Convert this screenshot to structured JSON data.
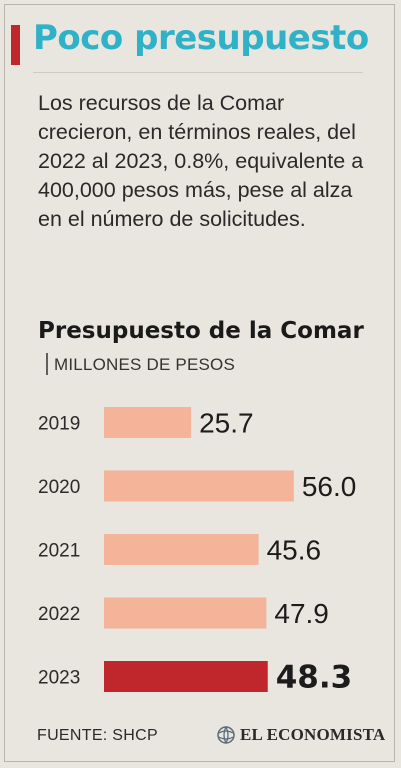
{
  "header": {
    "title": "Poco presupuesto",
    "lead": "Los recursos de la Comar crecieron, en términos reales, del 2022 al 2023, 0.8%, equivalente a 400,000 pesos más, pese al alza en el número de solicitudes."
  },
  "colors": {
    "accent": "#c0272d",
    "title": "#2fb2c7",
    "bar": "#f3b49a",
    "bar_highlight": "#c0272d"
  },
  "chart_data": {
    "type": "bar",
    "orientation": "horizontal",
    "title": "Presupuesto de la Comar",
    "subtitle": "MILLONES DE PESOS",
    "categories": [
      "2019",
      "2020",
      "2021",
      "2022",
      "2023"
    ],
    "values": [
      25.7,
      56.0,
      45.6,
      47.9,
      48.3
    ],
    "value_labels": [
      "25.7",
      "56.0",
      "45.6",
      "47.9",
      "48.3"
    ],
    "highlight": "2023",
    "grid": false,
    "legend": "none"
  },
  "footer": {
    "source": "FUENTE: SHCP",
    "brand": "EL ECONOMISTA",
    "brand_icon": "globe-icon"
  }
}
